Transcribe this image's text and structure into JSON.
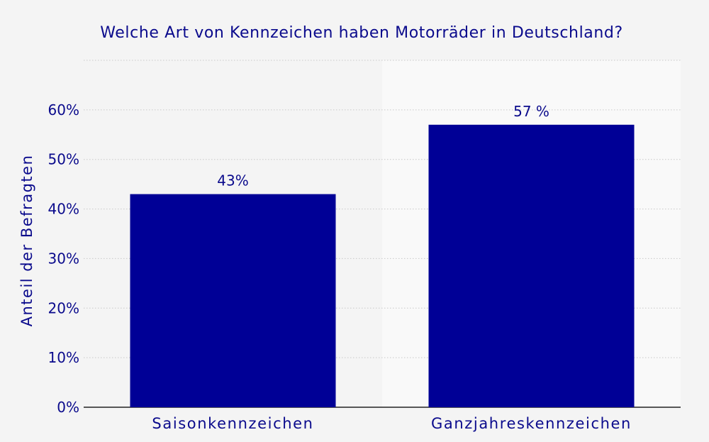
{
  "chart_data": {
    "type": "bar",
    "title": "Welche Art von Kennzeichen haben Motorräder in Deutschland?",
    "xlabel": "",
    "ylabel": "Anteil der Befragten",
    "categories": [
      "Saisonkennzeichen",
      "Ganzjahreskennzeichen"
    ],
    "values": [
      43,
      57
    ],
    "value_labels": [
      "43%",
      "57 %"
    ],
    "y_ticks": [
      0,
      10,
      20,
      30,
      40,
      50,
      60
    ],
    "y_tick_labels": [
      "0%",
      "10%",
      "20%",
      "30%",
      "40%",
      "50%",
      "60%"
    ],
    "ylim": [
      0,
      70
    ],
    "grid": true,
    "highlighted_category": "Ganzjahreskennzeichen",
    "colors": {
      "bar": "#000096",
      "text": "#0a0a8c",
      "background": "#f4f4f4",
      "highlight_band": "#f9f9f9",
      "grid": "#c8c8c8",
      "axis": "#222222"
    }
  }
}
